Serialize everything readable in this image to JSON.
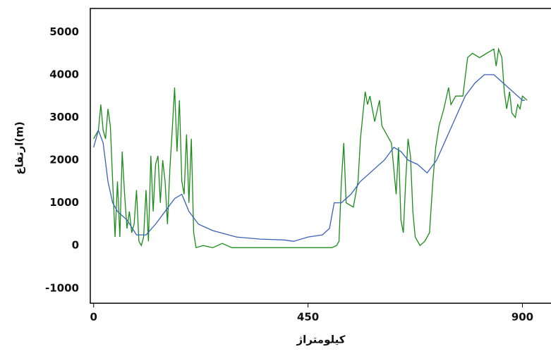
{
  "chart_data": {
    "type": "line",
    "x_label": "کیلومتراژ",
    "y_label": "ارتفاع(m)",
    "xlim": [
      -7,
      960
    ],
    "ylim": [
      -1350,
      5550
    ],
    "xticks": [
      0,
      450,
      900
    ],
    "yticks": [
      -1000,
      0,
      1000,
      2000,
      3000,
      4000,
      5000
    ],
    "series": [
      {
        "color": "#1a8c1a",
        "x": [
          0,
          5,
          10,
          15,
          20,
          25,
          30,
          35,
          40,
          45,
          50,
          55,
          60,
          65,
          70,
          75,
          80,
          85,
          90,
          95,
          100,
          105,
          110,
          115,
          120,
          125,
          130,
          135,
          140,
          145,
          150,
          155,
          160,
          165,
          170,
          175,
          180,
          185,
          190,
          195,
          200,
          205,
          210,
          215,
          230,
          250,
          270,
          290,
          310,
          350,
          400,
          450,
          500,
          510,
          515,
          520,
          525,
          530,
          545,
          555,
          560,
          570,
          575,
          580,
          590,
          600,
          605,
          615,
          625,
          635,
          640,
          645,
          650,
          655,
          660,
          665,
          670,
          675,
          685,
          695,
          705,
          712,
          718,
          725,
          735,
          745,
          750,
          760,
          775,
          785,
          795,
          810,
          825,
          840,
          845,
          850,
          857,
          862,
          867,
          873,
          878,
          885,
          890,
          895,
          900,
          910
        ],
        "values": [
          2500,
          2600,
          2700,
          3300,
          2700,
          2500,
          3200,
          2800,
          1500,
          200,
          1500,
          200,
          2200,
          1200,
          400,
          800,
          300,
          500,
          1300,
          100,
          0,
          200,
          1300,
          100,
          2100,
          800,
          1900,
          2100,
          1000,
          2000,
          1500,
          500,
          1800,
          2700,
          3700,
          2200,
          3400,
          1500,
          1200,
          2600,
          1000,
          2500,
          300,
          -50,
          0,
          -50,
          50,
          -50,
          -50,
          -50,
          -50,
          -50,
          -50,
          0,
          100,
          1500,
          2400,
          1000,
          900,
          1500,
          2500,
          3600,
          3300,
          3500,
          2900,
          3400,
          2800,
          2600,
          2400,
          1200,
          2300,
          600,
          300,
          1500,
          2500,
          2100,
          800,
          200,
          0,
          100,
          300,
          1500,
          2300,
          2800,
          3200,
          3700,
          3300,
          3500,
          3500,
          4400,
          4500,
          4400,
          4500,
          4600,
          4200,
          4600,
          4400,
          3600,
          3200,
          3600,
          3100,
          3000,
          3300,
          3200,
          3500,
          3400
        ]
      },
      {
        "color": "#3a62b8",
        "x": [
          0,
          10,
          20,
          30,
          40,
          50,
          70,
          90,
          110,
          130,
          150,
          170,
          185,
          200,
          220,
          250,
          300,
          350,
          400,
          420,
          450,
          480,
          495,
          505,
          520,
          540,
          560,
          590,
          610,
          630,
          645,
          660,
          680,
          700,
          720,
          740,
          760,
          780,
          800,
          820,
          840,
          860,
          880,
          900,
          905
        ],
        "values": [
          2300,
          2700,
          2400,
          1500,
          1000,
          800,
          600,
          250,
          250,
          500,
          800,
          1100,
          1200,
          800,
          500,
          350,
          200,
          150,
          130,
          100,
          200,
          250,
          400,
          1000,
          1000,
          1200,
          1500,
          1800,
          2000,
          2300,
          2200,
          2000,
          1900,
          1700,
          2000,
          2500,
          3000,
          3500,
          3800,
          4000,
          4000,
          3800,
          3600,
          3400,
          3400
        ]
      }
    ]
  }
}
